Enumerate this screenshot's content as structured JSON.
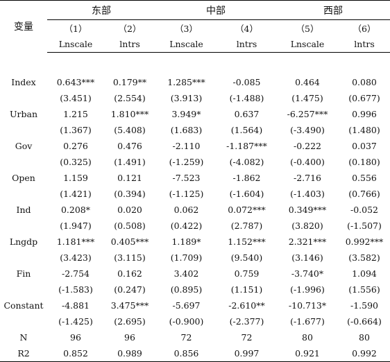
{
  "header": {
    "var_label": "变量",
    "groups": [
      "东部",
      "中部",
      "西部"
    ],
    "col_numbers": [
      "（1）",
      "（2）",
      "（3）",
      "（4）",
      "（5）",
      "（6）"
    ],
    "dep_vars": [
      "Lnscale",
      "lntrs",
      "Lnscale",
      "lntrs",
      "Lnscale",
      "lntrs"
    ]
  },
  "rows": [
    {
      "name": "Index",
      "coef": [
        "0.643***",
        "0.179**",
        "1.285***",
        "-0.085",
        "0.464",
        "0.080"
      ],
      "t": [
        "(3.451)",
        "(2.554)",
        "(3.913)",
        "(-1.488)",
        "(1.475)",
        "(0.677)"
      ]
    },
    {
      "name": "Urban",
      "coef": [
        "1.215",
        "1.810***",
        "3.949*",
        "0.637",
        "-6.257***",
        "0.996"
      ],
      "t": [
        "(1.367)",
        "(5.408)",
        "(1.683)",
        "(1.564)",
        "(-3.490)",
        "(1.480)"
      ]
    },
    {
      "name": "Gov",
      "coef": [
        "0.276",
        "0.476",
        "-2.110",
        "-1.187***",
        "-0.222",
        "0.037"
      ],
      "t": [
        "(0.325)",
        "(1.491)",
        "(-1.259)",
        "(-4.082)",
        "(-0.400)",
        "(0.180)"
      ]
    },
    {
      "name": "Open",
      "coef": [
        "1.159",
        "0.121",
        "-7.523",
        "-1.862",
        "-2.716",
        "0.556"
      ],
      "t": [
        "(1.421)",
        "(0.394)",
        "(-1.125)",
        "(-1.604)",
        "(-1.403)",
        "(0.766)"
      ]
    },
    {
      "name": "Ind",
      "coef": [
        "0.208*",
        "0.020",
        "0.062",
        "0.072***",
        "0.349***",
        "-0.052"
      ],
      "t": [
        "(1.947)",
        "(0.508)",
        "(0.422)",
        "(2.787)",
        "(3.820)",
        "(-1.507)"
      ]
    },
    {
      "name": "Lngdp",
      "coef": [
        "1.181***",
        "0.405***",
        "1.189*",
        "1.152***",
        "2.321***",
        "0.992***"
      ],
      "t": [
        "(3.423)",
        "(3.115)",
        "(1.709)",
        "(9.540)",
        "(3.146)",
        "(3.582)"
      ]
    },
    {
      "name": "Fin",
      "coef": [
        "-2.754",
        "0.162",
        "3.402",
        "0.759",
        "-3.740*",
        "1.094"
      ],
      "t": [
        "(-1.583)",
        "(0.247)",
        "(0.895)",
        "(1.151)",
        "(-1.996)",
        "(1.556)"
      ]
    },
    {
      "name": "Constant",
      "coef": [
        "-4.881",
        "3.475***",
        "-5.697",
        "-2.610**",
        "-10.713*",
        "-1.590"
      ],
      "t": [
        "(-1.425)",
        "(2.695)",
        "(-0.900)",
        "(-2.377)",
        "(-1.677)",
        "(-0.664)"
      ]
    }
  ],
  "footer": [
    {
      "name": "N",
      "values": [
        "96",
        "96",
        "72",
        "72",
        "80",
        "80"
      ]
    },
    {
      "name": "R2",
      "values": [
        "0.852",
        "0.989",
        "0.856",
        "0.997",
        "0.921",
        "0.992"
      ]
    }
  ]
}
